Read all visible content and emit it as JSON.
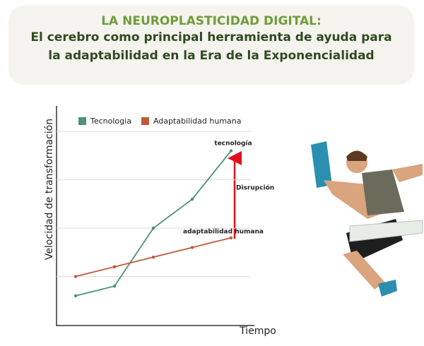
{
  "header": {
    "title": "LA NEUROPLASTICIDAD DIGITAL:",
    "subtitle": [
      "El cerebro como principal herramienta de ayuda para",
      "la adaptabilidad en la Era de la Exponencialidad"
    ]
  },
  "chart_data": {
    "type": "line",
    "categories": [
      null,
      null,
      null,
      null,
      null
    ],
    "series": [
      {
        "name": "Tecnologia",
        "color": "#4d9176",
        "values": [
          0.6,
          0.8,
          2.0,
          2.6,
          3.6
        ]
      },
      {
        "name": "Adaptabilidad humana",
        "color": "#c2593a",
        "values": [
          1.0,
          1.2,
          1.4,
          1.6,
          1.8
        ]
      }
    ],
    "ylim": [
      0,
      4.5
    ],
    "yticks": [
      1,
      2,
      3,
      4
    ],
    "grid": true,
    "y_label": "Velocidad de transformación",
    "x_label": "Tiempo",
    "annotations": [
      "tecnología",
      "Disrupción",
      "adaptabilidad humana"
    ]
  }
}
